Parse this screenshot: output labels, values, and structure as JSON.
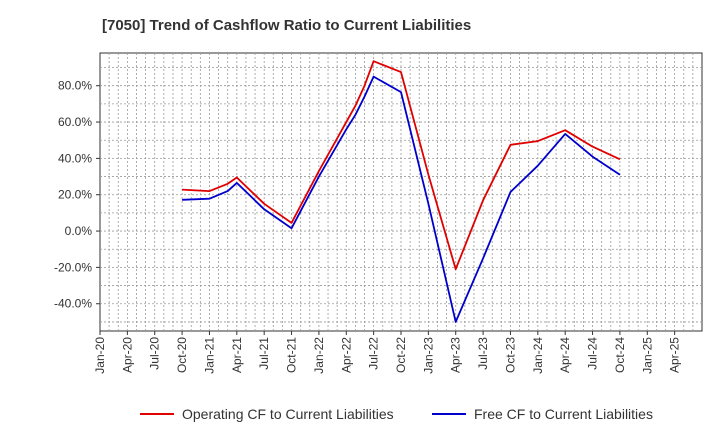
{
  "chart_data": {
    "type": "line",
    "title": "[7050]  Trend of Cashflow Ratio to Current Liabilities",
    "x_ticks": [
      "Jan-20",
      "Apr-20",
      "Jul-20",
      "Oct-20",
      "Jan-21",
      "Apr-21",
      "Jul-21",
      "Oct-21",
      "Jan-22",
      "Apr-22",
      "Jul-22",
      "Oct-22",
      "Jan-23",
      "Apr-23",
      "Jul-23",
      "Oct-23",
      "Jan-24",
      "Apr-24",
      "Jul-24",
      "Oct-24",
      "Jan-25",
      "Apr-25"
    ],
    "y_ticks": [
      "-40.0%",
      "-20.0%",
      "0.0%",
      "20.0%",
      "40.0%",
      "60.0%",
      "80.0%"
    ],
    "y_tick_values": [
      -40,
      -20,
      0,
      20,
      40,
      60,
      80
    ],
    "ylim": [
      -55,
      98
    ],
    "grid": true,
    "legend_position": "bottom",
    "x": [
      "Oct-20",
      "Jan-21",
      "Mar-21",
      "Apr-21",
      "Jul-21",
      "Oct-21",
      "Jan-22",
      "Apr-22",
      "May-22",
      "Jun-22",
      "Jul-22",
      "Oct-22",
      "Jan-23",
      "Apr-23",
      "Jul-23",
      "Oct-23",
      "Jan-24",
      "Apr-24",
      "Jul-24",
      "Oct-24"
    ],
    "series": [
      {
        "name": "Operating CF to Current Liabilities",
        "color": "#e00000",
        "values": [
          22.8,
          22.0,
          26.0,
          29.5,
          15.0,
          4.5,
          33.0,
          60.0,
          69.0,
          80.0,
          93.5,
          87.5,
          31.0,
          -21.0,
          17.0,
          47.5,
          49.5,
          55.5,
          46.5,
          39.5
        ]
      },
      {
        "name": "Free CF to Current Liabilities",
        "color": "#0000cc",
        "values": [
          17.2,
          17.8,
          22.0,
          26.5,
          12.0,
          1.5,
          30.0,
          56.0,
          64.0,
          74.0,
          85.0,
          76.5,
          15.0,
          -50.0,
          -15.0,
          21.5,
          36.0,
          53.5,
          41.0,
          31.0
        ]
      }
    ]
  }
}
